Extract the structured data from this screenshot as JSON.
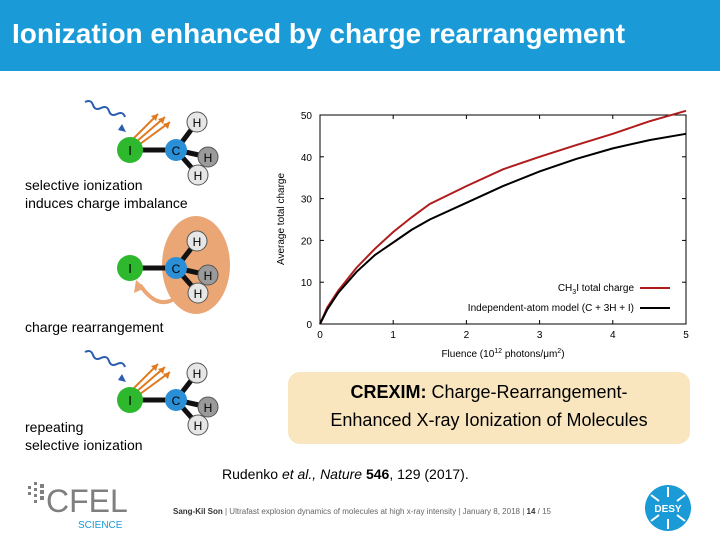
{
  "slide": {
    "title": "Ionization enhanced by charge rearrangement"
  },
  "left_panels": {
    "panel1_caption_line1": "selective ionization",
    "panel1_caption_line2": "induces charge imbalance",
    "panel2_caption": "charge rearrangement",
    "panel3_caption_line1": "repeating",
    "panel3_caption_line2": "selective ionization",
    "atom_I": "I",
    "atom_C": "C",
    "atom_H": "H"
  },
  "colors": {
    "header": "#1a9ad6",
    "iodine": "#2eb82e",
    "carbon": "#2a8fd6",
    "hydrogen_light": "#e6e6e6",
    "hydrogen_dark": "#9a9a9a",
    "xray_wave": "#2a5db0",
    "photoelectron": "#e07a20",
    "charge_cloud": "#eba676",
    "series_ch3i": "#b01c1c",
    "series_iam": "#000000",
    "crexim_box": "#f9e6bf"
  },
  "chart_data": {
    "type": "line",
    "xlabel_main": "Fluence (10",
    "xlabel_sup": "12",
    "xlabel_rest": " photons/μm",
    "xlabel_sup2": "2",
    "xlabel_end": ")",
    "ylabel": "Average total charge",
    "xlim": [
      0,
      5
    ],
    "ylim": [
      0,
      50
    ],
    "xticks": [
      "0",
      "1",
      "2",
      "3",
      "4",
      "5"
    ],
    "yticks": [
      "0",
      "10",
      "20",
      "30",
      "40",
      "50"
    ],
    "legend_position": "bottom-right",
    "series": [
      {
        "name": "CH3I total charge",
        "name_parts": [
          "CH",
          "3",
          "I total charge"
        ],
        "color": "#b01c1c",
        "x": [
          0,
          0.1,
          0.25,
          0.5,
          0.75,
          1.0,
          1.25,
          1.5,
          2.0,
          2.5,
          3.0,
          3.5,
          4.0,
          4.5,
          5.0
        ],
        "y": [
          0,
          4,
          8,
          13.5,
          18,
          22,
          25.5,
          28.7,
          33,
          37,
          40,
          42.8,
          45.5,
          48.5,
          51
        ]
      },
      {
        "name": "Independent-atom model (C + 3H + I)",
        "color": "#000000",
        "x": [
          0,
          0.1,
          0.25,
          0.5,
          0.75,
          1.0,
          1.25,
          1.5,
          2.0,
          2.5,
          3.0,
          3.5,
          4.0,
          4.5,
          5.0
        ],
        "y": [
          0,
          3.5,
          7.5,
          12.5,
          16.5,
          19.5,
          22.5,
          25,
          29,
          33,
          36.5,
          39.5,
          42,
          44,
          45.5
        ]
      }
    ]
  },
  "crexim": {
    "bold": "CREXIM:",
    "line1_rest": " Charge-Rearrangement-",
    "line2": "Enhanced X-ray Ionization of Molecules"
  },
  "citation": {
    "authors": "Rudenko ",
    "etal": "et al., Nature",
    "volume": "546",
    "rest": ", 129 (2017)."
  },
  "footer": {
    "author": "Sang-Kil Son",
    "text": " | Ultrafast explosion dynamics of molecules at high x-ray intensity | January 8, 2018 | ",
    "page": "14",
    "total": " / 15"
  },
  "logos": {
    "cfel_text": "CFEL",
    "cfel_sub": "SCIENCE",
    "desy_text": "DESY"
  }
}
